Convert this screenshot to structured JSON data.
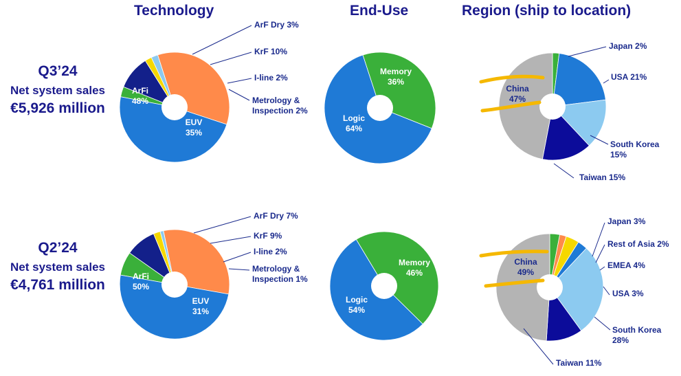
{
  "headers": {
    "technology": "Technology",
    "end_use": "End-Use",
    "region": "Region (ship to location)"
  },
  "periods": [
    {
      "quarter": "Q3’24",
      "metric": "Net system sales",
      "sales": "€5,926 million"
    },
    {
      "quarter": "Q2’24",
      "metric": "Net system sales",
      "sales": "€4,761 million"
    }
  ],
  "colors": {
    "title": "#1a1a8c",
    "label": "#1a2a8c",
    "white_label": "#ffffff",
    "highlight": "#f5b800"
  },
  "chart_data": [
    {
      "type": "pie",
      "id": "q3-technology",
      "period": "Q3’24",
      "column": "Technology",
      "slices": [
        {
          "label": "ArF Dry 3%",
          "value": 3,
          "color": "#3ab03a"
        },
        {
          "label": "KrF 10%",
          "value": 10,
          "color": "#13208a"
        },
        {
          "label": "I-line 2%",
          "value": 2,
          "color": "#f5d800"
        },
        {
          "label": "Metrology & Inspection 2%",
          "value": 2,
          "color": "#8ccaf0"
        },
        {
          "label": "EUV 35%",
          "value": 35,
          "color": "#ff8a4a"
        },
        {
          "label": "ArFi 48%",
          "value": 48,
          "color": "#1f7ad6"
        }
      ]
    },
    {
      "type": "pie",
      "id": "q3-enduse",
      "period": "Q3’24",
      "column": "End-Use",
      "slices": [
        {
          "label": "Memory 36%",
          "value": 36,
          "color": "#3ab03a"
        },
        {
          "label": "Logic 64%",
          "value": 64,
          "color": "#1f7ad6"
        }
      ]
    },
    {
      "type": "pie",
      "id": "q3-region",
      "period": "Q3’24",
      "column": "Region (ship to location)",
      "slices": [
        {
          "label": "Japan 2%",
          "value": 2,
          "color": "#3ab03a"
        },
        {
          "label": "USA 21%",
          "value": 21,
          "color": "#1f7ad6"
        },
        {
          "label": "South Korea 15%",
          "value": 15,
          "color": "#8ccaf0"
        },
        {
          "label": "Taiwan 15%",
          "value": 15,
          "color": "#0c0c9a"
        },
        {
          "label": "China 47%",
          "value": 47,
          "color": "#b4b4b4"
        }
      ]
    },
    {
      "type": "pie",
      "id": "q2-technology",
      "period": "Q2’24",
      "column": "Technology",
      "slices": [
        {
          "label": "ArF Dry 7%",
          "value": 7,
          "color": "#3ab03a"
        },
        {
          "label": "KrF 9%",
          "value": 9,
          "color": "#13208a"
        },
        {
          "label": "I-line 2%",
          "value": 2,
          "color": "#f5d800"
        },
        {
          "label": "Metrology & Inspection 1%",
          "value": 1,
          "color": "#8ccaf0"
        },
        {
          "label": "EUV 31%",
          "value": 31,
          "color": "#ff8a4a"
        },
        {
          "label": "ArFi 50%",
          "value": 50,
          "color": "#1f7ad6"
        }
      ]
    },
    {
      "type": "pie",
      "id": "q2-enduse",
      "period": "Q2’24",
      "column": "End-Use",
      "slices": [
        {
          "label": "Memory 46%",
          "value": 46,
          "color": "#3ab03a"
        },
        {
          "label": "Logic 54%",
          "value": 54,
          "color": "#1f7ad6"
        }
      ]
    },
    {
      "type": "pie",
      "id": "q2-region",
      "period": "Q2’24",
      "column": "Region (ship to location)",
      "slices": [
        {
          "label": "Japan 3%",
          "value": 3,
          "color": "#3ab03a"
        },
        {
          "label": "Rest of Asia 2%",
          "value": 2,
          "color": "#ff8a4a"
        },
        {
          "label": "EMEA 4%",
          "value": 4,
          "color": "#f5d800"
        },
        {
          "label": "USA 3%",
          "value": 3,
          "color": "#1f7ad6"
        },
        {
          "label": "South Korea 28%",
          "value": 28,
          "color": "#8ccaf0"
        },
        {
          "label": "Taiwan 11%",
          "value": 11,
          "color": "#0c0c9a"
        },
        {
          "label": "China 49%",
          "value": 49,
          "color": "#b4b4b4"
        }
      ]
    }
  ]
}
